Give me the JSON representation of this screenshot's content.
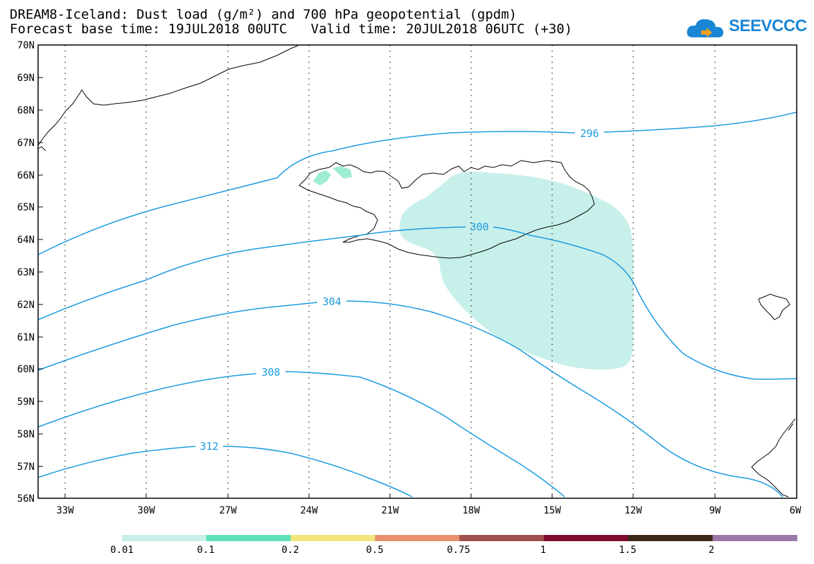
{
  "header": {
    "line1": "DREAM8-Iceland: Dust load (g/m²) and 700 hPa geopotential (gpdm)",
    "line2": "Forecast base time: 19JUL2018 00UTC   Valid time: 20JUL2018 06UTC (+30)"
  },
  "logo": {
    "text": "SEEVCCC",
    "icon": "cloud-icon",
    "color": "#1a86d6"
  },
  "map": {
    "lon_labels": [
      "33W",
      "30W",
      "27W",
      "24W",
      "21W",
      "18W",
      "15W",
      "12W",
      "9W",
      "6W"
    ],
    "lat_labels": [
      "70N",
      "69N",
      "68N",
      "67N",
      "66N",
      "65N",
      "64N",
      "63N",
      "62N",
      "61N",
      "60N",
      "59N",
      "58N",
      "57N",
      "56N"
    ],
    "contour_labels": [
      "296",
      "300",
      "304",
      "308",
      "312"
    ],
    "contour_color": "#1a9ae0",
    "dust_color": "#c8f0ea"
  },
  "colorbar": {
    "colors": [
      "#c6f0e8",
      "#5fe0b8",
      "#f4e47c",
      "#e8906c",
      "#a0504c",
      "#7c0c2e",
      "#3c2818",
      "#9a78a8"
    ],
    "labels": [
      "0.01",
      "0.1",
      "0.2",
      "0.5",
      "0.75",
      "1",
      "1.5",
      "2"
    ]
  }
}
